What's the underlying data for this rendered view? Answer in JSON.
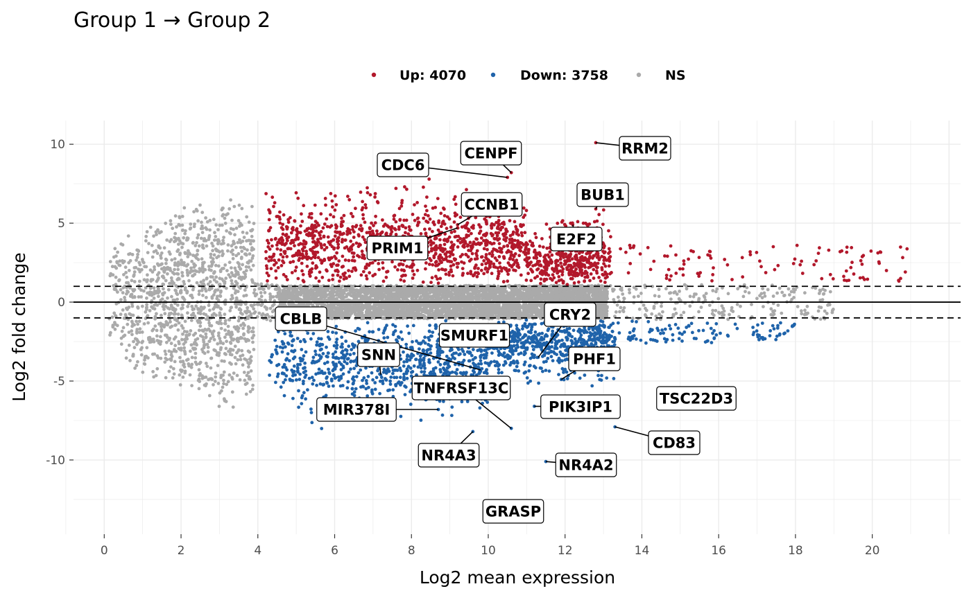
{
  "chart_data": {
    "type": "scatter",
    "title": "Group 1 → Group 2",
    "xlabel": "Log2 mean expression",
    "ylabel": "Log2 fold change",
    "xlim": [
      -0.8,
      22.3
    ],
    "ylim": [
      -14.7,
      11.5
    ],
    "x_ticks": [
      0,
      2,
      4,
      6,
      8,
      10,
      12,
      14,
      16,
      18,
      20
    ],
    "y_ticks": [
      10,
      5,
      0,
      -5,
      -10
    ],
    "y_tick_labels": [
      "10",
      "5",
      "0",
      "-5",
      "-10"
    ],
    "grid": true,
    "legend_position": "top",
    "reference_lines": {
      "solid": [
        0
      ],
      "dashed": [
        1,
        -1
      ]
    },
    "colors": {
      "up": "#b2182b",
      "down": "#1f63aa",
      "ns": "#aaaaaa"
    },
    "legend": [
      {
        "label": "Up: 4070",
        "color": "#b2182b"
      },
      {
        "label": "Down: 3758",
        "color": "#1f63aa"
      },
      {
        "label": "NS",
        "color": "#aaaaaa"
      }
    ],
    "series": [
      {
        "key": "up",
        "count": 4070
      },
      {
        "key": "down",
        "count": 3758
      },
      {
        "key": "ns"
      }
    ],
    "labeled_genes": [
      {
        "gene": "RRM2",
        "x": 12.8,
        "y": 10.1
      },
      {
        "gene": "CENPF",
        "x": 10.6,
        "y": 8.2
      },
      {
        "gene": "CDC6",
        "x": 10.5,
        "y": 7.9
      },
      {
        "gene": "BUB1",
        "x": 12.8,
        "y": 5.9
      },
      {
        "gene": "CCNB1",
        "x": 9.2,
        "y": 4.9
      },
      {
        "gene": "E2F2",
        "x": 12.2,
        "y": 4.9
      },
      {
        "gene": "PRIM1",
        "x": 9.2,
        "y": 4.7
      },
      {
        "gene": "CBLB",
        "x": 9.8,
        "y": -4.3
      },
      {
        "gene": "CRY2",
        "x": 11.3,
        "y": -3.5
      },
      {
        "gene": "SMURF1",
        "x": 9.3,
        "y": -1.9
      },
      {
        "gene": "SNN",
        "x": 7.2,
        "y": -4.6
      },
      {
        "gene": "PHF1",
        "x": 11.9,
        "y": -4.9
      },
      {
        "gene": "TNFRSF13C",
        "x": 10.6,
        "y": -8.0
      },
      {
        "gene": "TSC22D3",
        "x": 14.7,
        "y": -5.8
      },
      {
        "gene": "MIR378I",
        "x": 8.7,
        "y": -6.8
      },
      {
        "gene": "PIK3IP1",
        "x": 11.2,
        "y": -6.6
      },
      {
        "gene": "CD83",
        "x": 13.3,
        "y": -7.9
      },
      {
        "gene": "NR4A3",
        "x": 9.6,
        "y": -8.2
      },
      {
        "gene": "NR4A2",
        "x": 11.5,
        "y": -10.1
      },
      {
        "gene": "GRASP",
        "x": 10.4,
        "y": -12.6
      }
    ]
  }
}
